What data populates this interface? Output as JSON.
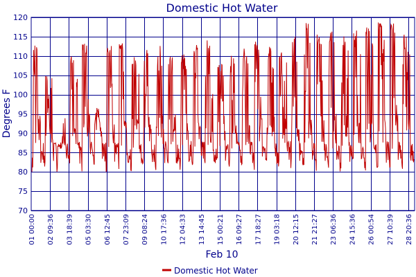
{
  "chart_data": {
    "type": "line",
    "title": "Domestic Hot Water",
    "xlabel": "Feb 10",
    "ylabel": "Degrees F",
    "ylim": [
      70,
      120
    ],
    "yticks": [
      70,
      75,
      80,
      85,
      90,
      95,
      100,
      105,
      110,
      115,
      120
    ],
    "xtick_labels": [
      "01 00:00",
      "02 09:36",
      "03 18:39",
      "05 03:30",
      "06 12:45",
      "07 23:09",
      "09 08:24",
      "10 17:36",
      "12 04:33",
      "13 14:45",
      "15 00:21",
      "16 09:27",
      "17 18:27",
      "19 03:18",
      "20 12:15",
      "21 21:27",
      "23 06:36",
      "24 15:36",
      "26 00:54",
      "27 10:39",
      "28 20:36"
    ],
    "grid": true,
    "legend": "bottom-center",
    "series": [
      {
        "name": "Domestic Hot Water",
        "color": "#C00000",
        "peaks": [
          113.8,
          106.3,
          88.5,
          110.2,
          113.3,
          97,
          112.7,
          113.4,
          110.2,
          112.3,
          113.5,
          110.5,
          110.7,
          113.2,
          114.9,
          108.3,
          111.7,
          111.9,
          114.2,
          112.4,
          112.4,
          115.1,
          119.8,
          115.9,
          116.4,
          115.1,
          117.1,
          117.7,
          118.9,
          118.5,
          116.9
        ]
      }
    ]
  }
}
